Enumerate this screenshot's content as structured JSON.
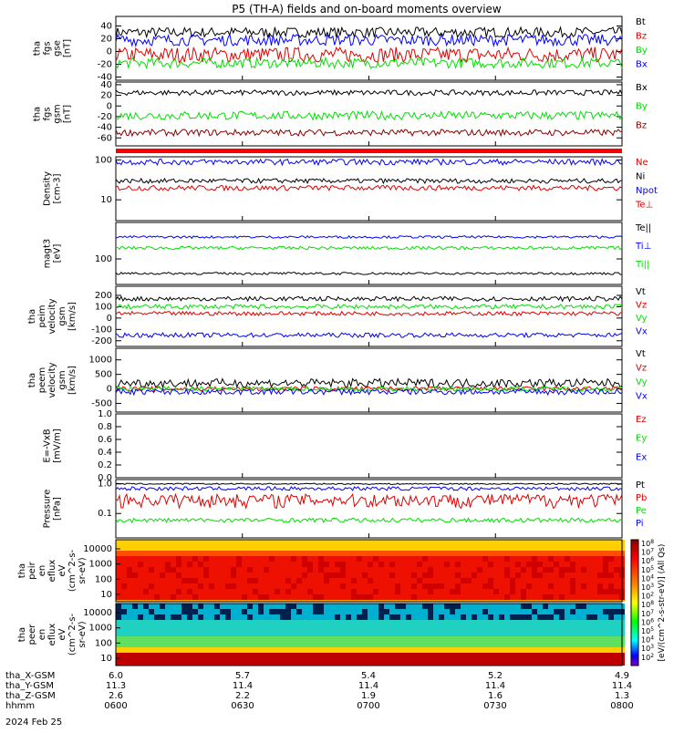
{
  "title": "P5 (TH-A) fields and on-board moments overview",
  "colors": {
    "black": "#000000",
    "red": "#e00000",
    "dark_red": "#8b0000",
    "green": "#00e000",
    "blue": "#0000ff",
    "marker": "#ff0000"
  },
  "time_axis": {
    "rows": [
      {
        "label": "tha_X-GSM",
        "values": [
          "6.0",
          "5.7",
          "5.4",
          "5.2",
          "4.9"
        ]
      },
      {
        "label": "tha_Y-GSM",
        "values": [
          "11.3",
          "11.4",
          "11.4",
          "11.4",
          "11.4"
        ]
      },
      {
        "label": "tha_Z-GSM",
        "values": [
          "2.6",
          "2.2",
          "1.9",
          "1.6",
          "1.3"
        ]
      },
      {
        "label": "hhmm",
        "values": [
          "0600",
          "0630",
          "0700",
          "0730",
          "0800"
        ]
      }
    ],
    "date": "2024 Feb 25"
  },
  "chart_data": [
    {
      "id": "fgs_gse",
      "type": "line",
      "ylabel": [
        "tha",
        "fgs",
        "gse",
        "[nT]"
      ],
      "yticks": [
        "-40",
        "-20",
        "0",
        "20",
        "40"
      ],
      "ylim": [
        -45,
        55
      ],
      "series": [
        {
          "name": "Bt",
          "color": "black",
          "level": 30,
          "noise": 8
        },
        {
          "name": "Bz",
          "color": "red",
          "level": -5,
          "noise": 12
        },
        {
          "name": "By",
          "color": "green",
          "level": -18,
          "noise": 8
        },
        {
          "name": "Bx",
          "color": "blue",
          "level": 18,
          "noise": 9
        }
      ]
    },
    {
      "id": "fgs_gsm",
      "type": "line",
      "ylabel": [
        "tha",
        "fgs",
        "gsm",
        "[nT]"
      ],
      "yticks": [
        "-60",
        "-40",
        "-20",
        "0",
        "20",
        "40"
      ],
      "ylim": [
        -75,
        45
      ],
      "series": [
        {
          "name": "Bx",
          "color": "black",
          "level": 25,
          "noise": 5
        },
        {
          "name": "By",
          "color": "green",
          "level": -18,
          "noise": 8
        },
        {
          "name": "Bz",
          "color": "dark_red",
          "level": -50,
          "noise": 6
        }
      ]
    },
    {
      "id": "density",
      "type": "line",
      "scale": "log",
      "ylabel": [
        "Density",
        "[cm-3]"
      ],
      "yticks": [
        "10",
        "100"
      ],
      "ylim": [
        3,
        120
      ],
      "series": [
        {
          "name": "Ne",
          "color": "red",
          "level": 20,
          "noise": 3
        },
        {
          "name": "Ni",
          "color": "black",
          "level": 30,
          "noise": 4
        },
        {
          "name": "Npot",
          "color": "blue",
          "level": 90,
          "noise": 15
        },
        {
          "name": "Te⊥",
          "color": "red",
          "level": 0,
          "noise": 0
        }
      ]
    },
    {
      "id": "temperature",
      "type": "line",
      "scale": "log",
      "ylabel": [
        "magt3",
        "[eV]"
      ],
      "yticks": [
        "100"
      ],
      "ylim": [
        20,
        1000
      ],
      "series": [
        {
          "name": "Te||",
          "color": "black",
          "level": 40,
          "noise": 3
        },
        {
          "name": "Ti⊥",
          "color": "blue",
          "level": 400,
          "noise": 30
        },
        {
          "name": "Ti||",
          "color": "green",
          "level": 200,
          "noise": 20
        }
      ]
    },
    {
      "id": "peim_velocity",
      "type": "line",
      "ylabel": [
        "tha",
        "peim",
        "velocity",
        "gsm",
        "[km/s]"
      ],
      "yticks": [
        "-200",
        "-100",
        "0",
        "100",
        "200"
      ],
      "ylim": [
        -250,
        280
      ],
      "series": [
        {
          "name": "Vt",
          "color": "black",
          "level": 170,
          "noise": 20
        },
        {
          "name": "Vz",
          "color": "red",
          "level": 40,
          "noise": 18
        },
        {
          "name": "Vy",
          "color": "green",
          "level": 100,
          "noise": 20
        },
        {
          "name": "Vx",
          "color": "blue",
          "level": -150,
          "noise": 20
        }
      ]
    },
    {
      "id": "peem_velocity",
      "type": "line",
      "ylabel": [
        "tha",
        "peem",
        "velocity",
        "gsm",
        "[km/s]"
      ],
      "yticks": [
        "-500",
        "0",
        "500",
        "1000"
      ],
      "ylim": [
        -800,
        1400
      ],
      "series": [
        {
          "name": "Vt",
          "color": "black",
          "level": 200,
          "noise": 150
        },
        {
          "name": "Vz",
          "color": "red",
          "level": 0,
          "noise": 80
        },
        {
          "name": "Vy",
          "color": "green",
          "level": 0,
          "noise": 80
        },
        {
          "name": "Vx",
          "color": "blue",
          "level": -100,
          "noise": 100
        }
      ]
    },
    {
      "id": "efield",
      "type": "line",
      "ylabel": [
        "E=-VxB",
        "[mV/m]"
      ],
      "yticks": [
        "0.0",
        "0.2",
        "0.4",
        "0.6",
        "0.8",
        "1.0"
      ],
      "ylim": [
        0,
        1
      ],
      "series": [
        {
          "name": "Ez",
          "color": "red",
          "level": 0,
          "noise": 0
        },
        {
          "name": "Ey",
          "color": "green",
          "level": 0,
          "noise": 0
        },
        {
          "name": "Ex",
          "color": "blue",
          "level": 0,
          "noise": 0
        }
      ]
    },
    {
      "id": "pressure",
      "type": "line",
      "scale": "log",
      "ylabel": [
        "Pressure",
        "[nPa]"
      ],
      "yticks": [
        "0.1",
        "1.0"
      ],
      "ylim": [
        0.015,
        1.4
      ],
      "series": [
        {
          "name": "Pt",
          "color": "black",
          "level": 1.0,
          "noise": 0.05
        },
        {
          "name": "Pb",
          "color": "red",
          "level": 0.3,
          "noise": 0.15
        },
        {
          "name": "Pe",
          "color": "green",
          "level": 0.06,
          "noise": 0.01
        },
        {
          "name": "Pi",
          "color": "blue",
          "level": 0.7,
          "noise": 0.1
        }
      ]
    },
    {
      "id": "peir_eflux",
      "type": "heatmap",
      "ylabel": [
        "tha",
        "peir",
        "en",
        "eflux",
        "eV",
        "(cm^2-s-",
        "sr-eV)"
      ],
      "yticks": [
        "10",
        "100",
        "1000",
        "10000"
      ]
    },
    {
      "id": "peer_eflux",
      "type": "heatmap",
      "ylabel": [
        "tha",
        "peer",
        "en",
        "eflux",
        "eV",
        "(cm^2-s-",
        "sr-eV)"
      ],
      "yticks": [
        "10",
        "100",
        "1000",
        "10000"
      ]
    }
  ],
  "colorbar": {
    "label": "[eV/(cm^2-s-str-eV)] (All Qs)",
    "ticks": [
      "10^8",
      "10^7",
      "10^6",
      "10^5",
      "10^4",
      "10^3",
      "10^2",
      "10^8",
      "10^7",
      "10^6",
      "10^5",
      "10^4",
      "10^3",
      "10^2"
    ]
  }
}
